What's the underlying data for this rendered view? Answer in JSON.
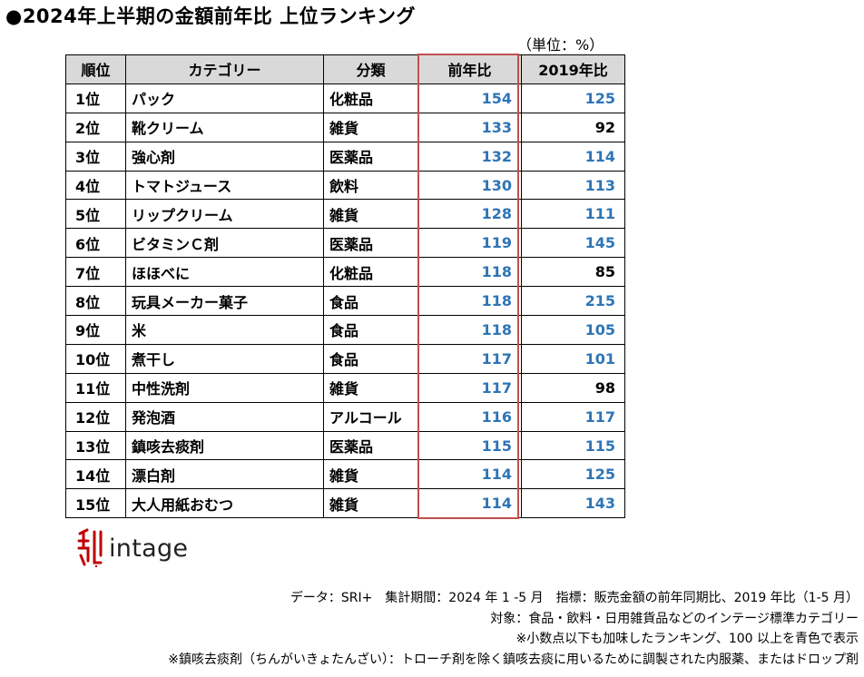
{
  "title": "●2024年上半期の金額前年比 上位ランキング",
  "unit": "（単位：%）",
  "table": {
    "headers": [
      "順位",
      "カテゴリー",
      "分類",
      "前年比",
      "2019年比"
    ],
    "rows": [
      {
        "rank": "1位",
        "category": "パック",
        "class": "化粧品",
        "yoy": "154",
        "vs2019": "125",
        "vs2019_blue": true
      },
      {
        "rank": "2位",
        "category": "靴クリーム",
        "class": "雑貨",
        "yoy": "133",
        "vs2019": "92",
        "vs2019_blue": false
      },
      {
        "rank": "3位",
        "category": "強心剤",
        "class": "医薬品",
        "yoy": "132",
        "vs2019": "114",
        "vs2019_blue": true
      },
      {
        "rank": "4位",
        "category": "トマトジュース",
        "class": "飲料",
        "yoy": "130",
        "vs2019": "113",
        "vs2019_blue": true
      },
      {
        "rank": "5位",
        "category": "リップクリーム",
        "class": "雑貨",
        "yoy": "128",
        "vs2019": "111",
        "vs2019_blue": true
      },
      {
        "rank": "6位",
        "category": "ビタミンＣ剤",
        "class": "医薬品",
        "yoy": "119",
        "vs2019": "145",
        "vs2019_blue": true
      },
      {
        "rank": "7位",
        "category": "ほほべに",
        "class": "化粧品",
        "yoy": "118",
        "vs2019": "85",
        "vs2019_blue": false
      },
      {
        "rank": "8位",
        "category": "玩具メーカー菓子",
        "class": "食品",
        "yoy": "118",
        "vs2019": "215",
        "vs2019_blue": true
      },
      {
        "rank": "9位",
        "category": "米",
        "class": "食品",
        "yoy": "118",
        "vs2019": "105",
        "vs2019_blue": true
      },
      {
        "rank": "10位",
        "category": "煮干し",
        "class": "食品",
        "yoy": "117",
        "vs2019": "101",
        "vs2019_blue": true
      },
      {
        "rank": "11位",
        "category": "中性洗剤",
        "class": "雑貨",
        "yoy": "117",
        "vs2019": "98",
        "vs2019_blue": false
      },
      {
        "rank": "12位",
        "category": "発泡酒",
        "class": "アルコール",
        "yoy": "116",
        "vs2019": "117",
        "vs2019_blue": true
      },
      {
        "rank": "13位",
        "category": "鎮咳去痰剤",
        "class": "医薬品",
        "yoy": "115",
        "vs2019": "115",
        "vs2019_blue": true
      },
      {
        "rank": "14位",
        "category": "漂白剤",
        "class": "雑貨",
        "yoy": "114",
        "vs2019": "125",
        "vs2019_blue": true
      },
      {
        "rank": "15位",
        "category": "大人用紙おむつ",
        "class": "雑貨",
        "yoy": "114",
        "vs2019": "143",
        "vs2019_blue": true
      }
    ]
  },
  "colors": {
    "blue": "#2e75b6",
    "highlight_border": "#c0504d",
    "header_bg": "#d9d9d9",
    "logo_red": "#c00000"
  },
  "logo": {
    "text": "intage",
    "icon": "intage-mark-icon"
  },
  "notes": [
    "データ：SRI+　集計期間：2024 年 1 -5 月　指標：販売金額の前年同期比、2019 年比（1-5 月）",
    "対象：食品・飲料・日用雑貨品などのインテージ標準カテゴリー",
    "※小数点以下も加味したランキング、100 以上を青色で表示",
    "※鎮咳去痰剤（ちんがいきょたんざい）：トローチ剤を除く鎮咳去痰に用いるために調製された内服薬、またはドロップ剤"
  ]
}
